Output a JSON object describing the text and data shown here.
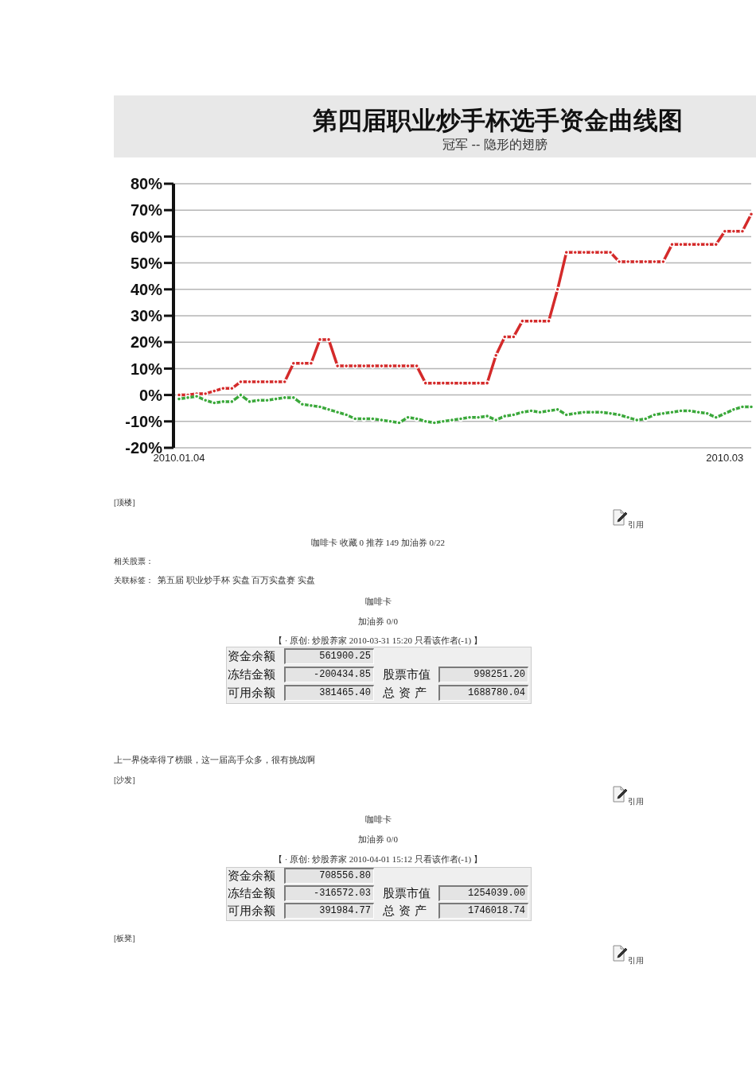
{
  "chart_data": [
    {
      "type": "line",
      "title": "第四届职业炒手杯选手资金曲线图",
      "subtitle": "冠军 -- 隐形的翅膀",
      "categories": [
        "2010.01.04",
        null,
        null,
        null,
        null,
        null,
        null,
        null,
        null,
        null,
        null,
        null,
        null,
        null,
        null,
        null,
        null,
        null,
        null,
        null,
        null,
        null,
        null,
        null,
        null,
        null,
        null,
        null,
        null,
        null,
        null,
        null,
        null,
        null,
        null,
        null,
        null,
        null,
        null,
        null,
        null,
        null,
        null,
        null,
        null,
        null,
        null,
        null,
        null,
        null,
        null,
        null,
        null,
        null,
        null,
        null,
        null,
        null,
        null,
        null,
        null,
        null,
        "2010.03",
        null,
        null,
        null
      ],
      "series": [
        {
          "color": "#d42a2a",
          "values": [
            0,
            0,
            0.5,
            0.5,
            1.5,
            2.5,
            2.5,
            5,
            5,
            5,
            5,
            5,
            5,
            12,
            12,
            12,
            21,
            21,
            11,
            11,
            11,
            11,
            11,
            11,
            11,
            11,
            11,
            11,
            4.5,
            4.5,
            4.5,
            4.5,
            4.5,
            4.5,
            4.5,
            4.5,
            15,
            22,
            22,
            28,
            28,
            28,
            28,
            40,
            54,
            54,
            54,
            54,
            54,
            54,
            50.5,
            50.5,
            50.5,
            50.5,
            50.5,
            50.5,
            57,
            57,
            57,
            57,
            57,
            57,
            62,
            62,
            62,
            68.5
          ]
        },
        {
          "color": "#3aa83a",
          "values": [
            -1.5,
            -1,
            -0.5,
            -2,
            -3,
            -2.5,
            -2.5,
            0,
            -2.5,
            -2,
            -2,
            -1.5,
            -1,
            -1,
            -3.5,
            -4,
            -4.5,
            -5.5,
            -6.5,
            -7.5,
            -9,
            -9,
            -9,
            -9.5,
            -10,
            -10.5,
            -8.5,
            -9,
            -10,
            -10.5,
            -10,
            -9.5,
            -9,
            -8.5,
            -8.5,
            -8,
            -9.5,
            -8,
            -7.5,
            -6.5,
            -6,
            -6.5,
            -6,
            -5.5,
            -7.5,
            -7,
            -6.5,
            -6.5,
            -6.5,
            -7,
            -7.5,
            -8.5,
            -9.5,
            -9,
            -7.5,
            -7,
            -6.5,
            -6,
            -6,
            -6.5,
            -7,
            -8.5,
            -7,
            -5.5,
            -4.5,
            -4.5
          ]
        }
      ],
      "ylim": [
        -20,
        80
      ],
      "yticks": [
        {
          "value": -20,
          "label": "-20%"
        },
        {
          "value": -10,
          "label": "-10%"
        },
        {
          "value": 0,
          "label": "0%"
        },
        {
          "value": 10,
          "label": "10%"
        },
        {
          "value": 20,
          "label": "20%"
        },
        {
          "value": 30,
          "label": "30%"
        },
        {
          "value": 40,
          "label": "40%"
        },
        {
          "value": 50,
          "label": "50%"
        },
        {
          "value": 60,
          "label": "60%"
        },
        {
          "value": 70,
          "label": "70%"
        },
        {
          "value": 80,
          "label": "80%"
        }
      ],
      "grid": "y",
      "marker": "circle",
      "line_style": "solid"
    },
    {
      "type": "other",
      "annotations": [
        "[顶楼]",
        "引用",
        "咖啡卡 收藏 0 推荐 149 加油券 0/22",
        "相关股票：",
        "关联标签：",
        "第五届 职业炒手杯 实盘 百万实盘赛 实盘",
        "咖啡卡",
        "加油券 0/0",
        "【 · 原创: 炒股养家 2010-03-31 15:20 只看该作者(-1) 】",
        "资金余额",
        "561900.25",
        "冻结金额",
        "-200434.85",
        "股票市值",
        "998251.20",
        "可用余额",
        "381465.40",
        "总 资 产",
        "1688780.04",
        "上一界侥幸得了榜眼，这一届高手众多，很有挑战啊",
        "[沙发]",
        "引用",
        "咖啡卡",
        "加油券 0/0",
        "【 · 原创: 炒股养家 2010-04-01 15:12 只看该作者(-1) 】",
        "资金余额",
        "708556.80",
        "冻结金额",
        "-316572.03",
        "股票市值",
        "1254039.00",
        "可用余额",
        "391984.77",
        "总 资 产",
        "1746018.74",
        "[板凳]",
        "引用"
      ]
    }
  ]
}
